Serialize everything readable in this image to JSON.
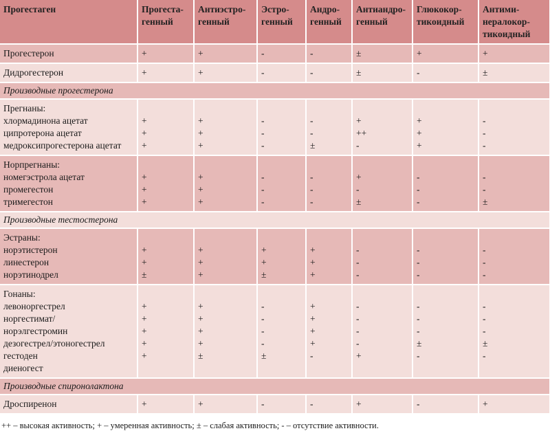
{
  "colors": {
    "header": "#d58b8b",
    "row_dark": "#e6b9b7",
    "row_light": "#f3dedb"
  },
  "table": {
    "headers": [
      [
        "Прогестаген"
      ],
      [
        "Прогеста-",
        "генный"
      ],
      [
        "Антиэстро-",
        "генный"
      ],
      [
        "Эстро-",
        "генный"
      ],
      [
        "Андро-",
        "генный"
      ],
      [
        "Антиандро-",
        "генный"
      ],
      [
        "Глюкокор-",
        "тикоидный"
      ],
      [
        "Антими-",
        "нералокор-",
        "тикоидный"
      ]
    ],
    "rows": [
      {
        "type": "data",
        "shade": "dark",
        "cells": [
          [
            "Прогестерон"
          ],
          [
            "+"
          ],
          [
            "+"
          ],
          [
            "-"
          ],
          [
            "-"
          ],
          [
            "±"
          ],
          [
            "+"
          ],
          [
            "+"
          ]
        ]
      },
      {
        "type": "data",
        "shade": "light",
        "cells": [
          [
            "Дидрогестерон"
          ],
          [
            "+"
          ],
          [
            "+"
          ],
          [
            "-"
          ],
          [
            "-"
          ],
          [
            "±"
          ],
          [
            "-"
          ],
          [
            "±"
          ]
        ]
      },
      {
        "type": "section",
        "shade": "dark",
        "label": "Производные прогестерона"
      },
      {
        "type": "data",
        "shade": "light",
        "cells": [
          [
            "Прегнаны:",
            "хлормадинона ацетат",
            "ципротерона ацетат",
            "медроксипрогестерона ацетат"
          ],
          [
            "",
            "+",
            "+",
            "+"
          ],
          [
            "",
            "+",
            "+",
            "+"
          ],
          [
            "",
            "-",
            "-",
            "-"
          ],
          [
            "",
            "-",
            "-",
            "±"
          ],
          [
            "",
            "+",
            "++",
            "-"
          ],
          [
            "",
            "+",
            "+",
            "+"
          ],
          [
            "",
            "-",
            "-",
            "-"
          ]
        ]
      },
      {
        "type": "data",
        "shade": "dark",
        "cells": [
          [
            "Норпрегнаны:",
            "номегэстрола ацетат",
            "промегестон",
            "тримегестон"
          ],
          [
            "",
            "+",
            "+",
            "+"
          ],
          [
            "",
            "+",
            "+",
            "+"
          ],
          [
            "",
            "-",
            "-",
            "-"
          ],
          [
            "",
            "-",
            "-",
            "-"
          ],
          [
            "",
            "+",
            "-",
            "±"
          ],
          [
            "",
            "-",
            "-",
            "-"
          ],
          [
            "",
            "-",
            "-",
            "±"
          ]
        ]
      },
      {
        "type": "section",
        "shade": "light",
        "label": "Производные тестостерона"
      },
      {
        "type": "data",
        "shade": "dark",
        "cells": [
          [
            "Эстраны:",
            "норэтистерон",
            "линестерон",
            "норэтинодрел"
          ],
          [
            "",
            "+",
            "+",
            "±"
          ],
          [
            "",
            "+",
            "+",
            "+"
          ],
          [
            "",
            "+",
            "+",
            "±"
          ],
          [
            "",
            "+",
            "+",
            "+"
          ],
          [
            "",
            "-",
            "-",
            "-"
          ],
          [
            "",
            "-",
            "-",
            "-"
          ],
          [
            "",
            "-",
            "-",
            "-"
          ]
        ]
      },
      {
        "type": "data",
        "shade": "light",
        "cells": [
          [
            "Гонаны:",
            "левоноргестрел",
            "норгестимат/",
            "норэлгестромин",
            "дезогестрел/этоногестрел",
            "гестоден",
            "диеногест"
          ],
          [
            "",
            "+",
            "+",
            "+",
            "+",
            "+"
          ],
          [
            "",
            "+",
            "+",
            "+",
            "+",
            "±"
          ],
          [
            "",
            "-",
            "-",
            "-",
            "-",
            "±"
          ],
          [
            "",
            "+",
            "+",
            "+",
            "+",
            "-"
          ],
          [
            "",
            "-",
            "-",
            "-",
            "-",
            "+"
          ],
          [
            "",
            "-",
            "-",
            "-",
            "±",
            "-"
          ],
          [
            "",
            "-",
            "-",
            "-",
            "±",
            "-"
          ]
        ]
      },
      {
        "type": "section",
        "shade": "dark",
        "label": "Производные спиронолактона"
      },
      {
        "type": "data",
        "shade": "light",
        "cells": [
          [
            "Дроспиренон"
          ],
          [
            "+"
          ],
          [
            "+"
          ],
          [
            "-"
          ],
          [
            "-"
          ],
          [
            "+"
          ],
          [
            "-"
          ],
          [
            "+"
          ]
        ]
      }
    ]
  },
  "footnote": "++ – высокая активность; + – умеренная активность; ± – слабая активность; - – отсутствие активности."
}
